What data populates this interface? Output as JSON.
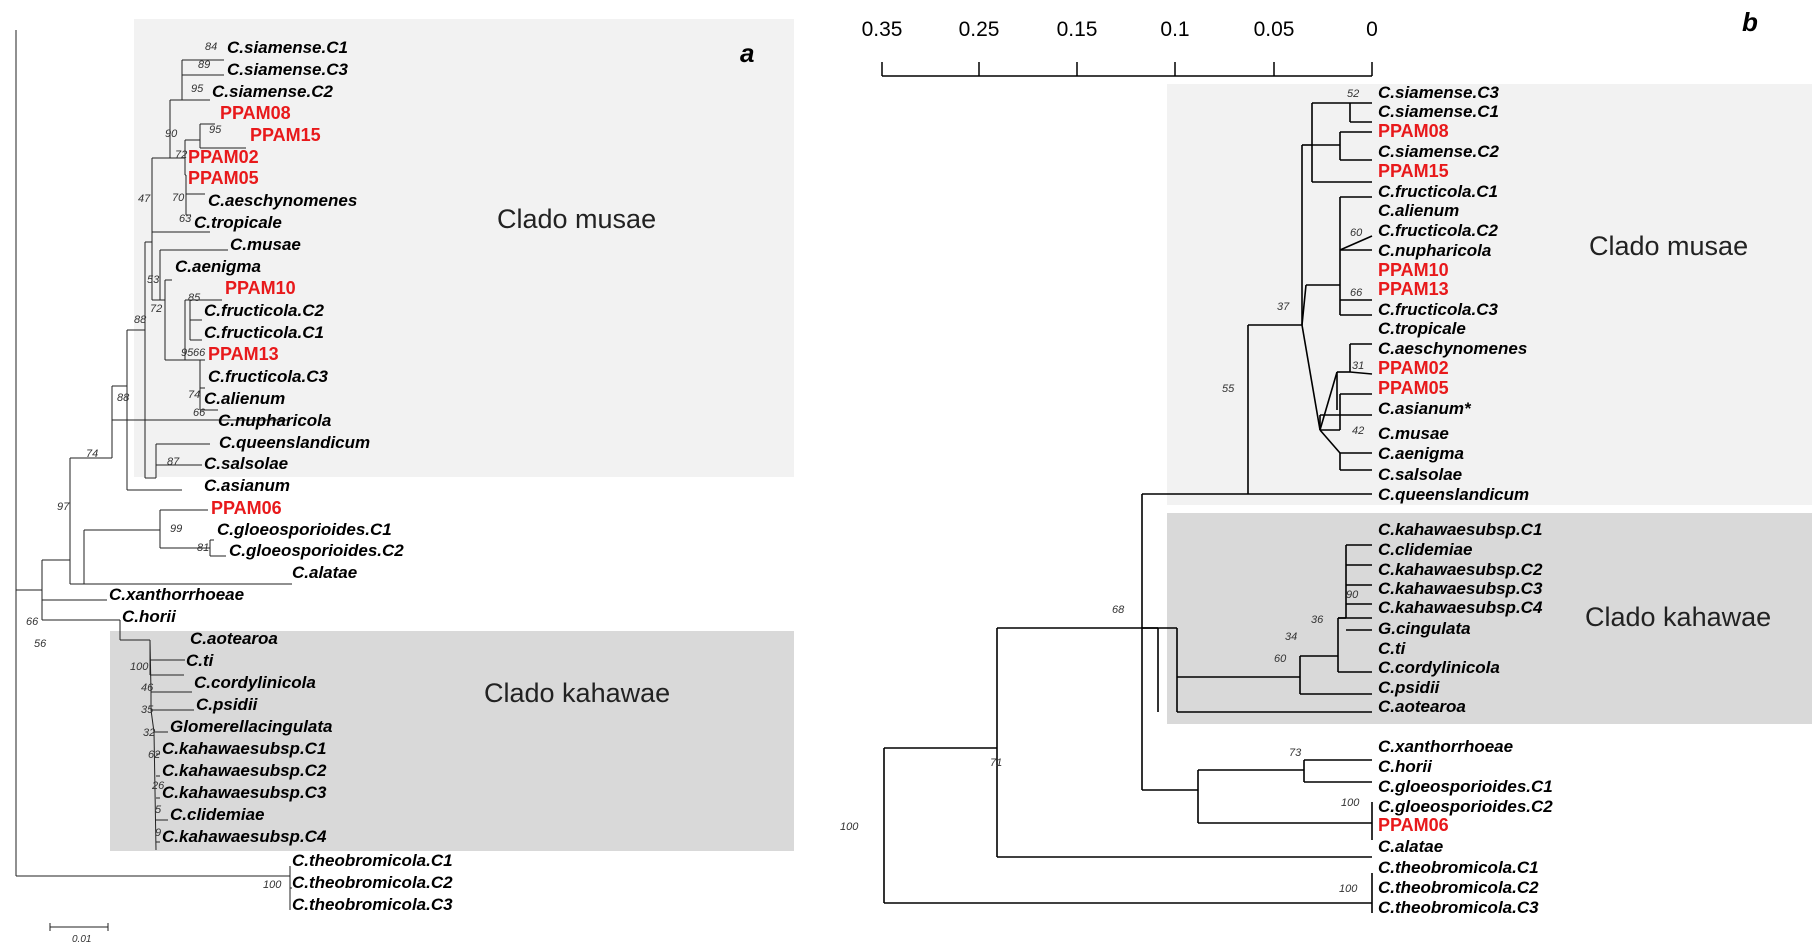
{
  "panel_a": {
    "label": "a",
    "clade_musae_label": "Clado musae",
    "clade_kahawae_label": "Clado kahawae",
    "scale_label": "0.01",
    "taxa": [
      {
        "name": "C.siamense.C1",
        "red": false
      },
      {
        "name": "C.siamense.C3",
        "red": false
      },
      {
        "name": "C.siamense.C2",
        "red": false
      },
      {
        "name": "PPAM08",
        "red": true
      },
      {
        "name": "PPAM15",
        "red": true
      },
      {
        "name": "PPAM02",
        "red": true
      },
      {
        "name": "PPAM05",
        "red": true
      },
      {
        "name": "C.aeschynomenes",
        "red": false
      },
      {
        "name": "C.tropicale",
        "red": false
      },
      {
        "name": "C.musae",
        "red": false
      },
      {
        "name": "C.aenigma",
        "red": false
      },
      {
        "name": "PPAM10",
        "red": true
      },
      {
        "name": "C.fructicola.C2",
        "red": false
      },
      {
        "name": "C.fructicola.C1",
        "red": false
      },
      {
        "name": "PPAM13",
        "red": true
      },
      {
        "name": "C.fructicola.C3",
        "red": false
      },
      {
        "name": "C.alienum",
        "red": false
      },
      {
        "name": "C.nupharicola",
        "red": false
      },
      {
        "name": "C.queenslandicum",
        "red": false
      },
      {
        "name": "C.salsolae",
        "red": false
      },
      {
        "name": "C.asianum",
        "red": false
      },
      {
        "name": "PPAM06",
        "red": true
      },
      {
        "name": "C.gloeosporioides.C1",
        "red": false
      },
      {
        "name": "C.gloeosporioides.C2",
        "red": false
      },
      {
        "name": "C.alatae",
        "red": false
      },
      {
        "name": "C.xanthorrhoeae",
        "red": false
      },
      {
        "name": "C.horii",
        "red": false
      },
      {
        "name": "C.aotearoa",
        "red": false
      },
      {
        "name": "C.ti",
        "red": false
      },
      {
        "name": "C.cordylinicola",
        "red": false
      },
      {
        "name": "C.psidii",
        "red": false
      },
      {
        "name": "Glomerellacingulata",
        "red": false
      },
      {
        "name": "C.kahawaesubsp.C1",
        "red": false
      },
      {
        "name": "C.kahawaesubsp.C2",
        "red": false
      },
      {
        "name": "C.kahawaesubsp.C3",
        "red": false
      },
      {
        "name": "C.clidemiae",
        "red": false
      },
      {
        "name": "C.kahawaesubsp.C4",
        "red": false
      },
      {
        "name": "C.theobromicola.C1",
        "red": false
      },
      {
        "name": "C.theobromicola.C2",
        "red": false
      },
      {
        "name": "C.theobromicola.C3",
        "red": false
      }
    ],
    "bootstrap": [
      "84",
      "89",
      "95",
      "95",
      "90",
      "72",
      "70",
      "63",
      "47",
      "53",
      "85",
      "72",
      "95",
      "66",
      "74",
      "66",
      "88",
      "87",
      "88",
      "74",
      "97",
      "99",
      "81",
      "66",
      "56",
      "100",
      "46",
      "35",
      "32",
      "62",
      "26",
      "5",
      "9",
      "100"
    ]
  },
  "panel_b": {
    "label": "b",
    "clade_musae_label": "Clado musae",
    "clade_kahawae_label": "Clado kahawae",
    "axis_ticks": [
      "0.35",
      "0.25",
      "0.15",
      "0.1",
      "0.05",
      "0"
    ],
    "taxa": [
      {
        "name": "C.siamense.C3",
        "red": false
      },
      {
        "name": "C.siamense.C1",
        "red": false
      },
      {
        "name": "PPAM08",
        "red": true
      },
      {
        "name": "C.siamense.C2",
        "red": false
      },
      {
        "name": "PPAM15",
        "red": true
      },
      {
        "name": "C.fructicola.C1",
        "red": false
      },
      {
        "name": "C.alienum",
        "red": false
      },
      {
        "name": "C.fructicola.C2",
        "red": false
      },
      {
        "name": "C.nupharicola",
        "red": false
      },
      {
        "name": "PPAM10",
        "red": true
      },
      {
        "name": "PPAM13",
        "red": true
      },
      {
        "name": "C.fructicola.C3",
        "red": false
      },
      {
        "name": "C.tropicale",
        "red": false
      },
      {
        "name": "C.aeschynomenes",
        "red": false
      },
      {
        "name": "PPAM02",
        "red": true
      },
      {
        "name": "PPAM05",
        "red": true
      },
      {
        "name": "C.asianum*",
        "red": false
      },
      {
        "name": "C.musae",
        "red": false
      },
      {
        "name": "C.aenigma",
        "red": false
      },
      {
        "name": "C.salsolae",
        "red": false
      },
      {
        "name": "C.queenslandicum",
        "red": false
      },
      {
        "name": "C.kahawaesubsp.C1",
        "red": false
      },
      {
        "name": "C.clidemiae",
        "red": false
      },
      {
        "name": "C.kahawaesubsp.C2",
        "red": false
      },
      {
        "name": "C.kahawaesubsp.C3",
        "red": false
      },
      {
        "name": "C.kahawaesubsp.C4",
        "red": false
      },
      {
        "name": "G.cingulata",
        "red": false
      },
      {
        "name": "C.ti",
        "red": false
      },
      {
        "name": "C.cordylinicola",
        "red": false
      },
      {
        "name": "C.psidii",
        "red": false
      },
      {
        "name": "C.aotearoa",
        "red": false
      },
      {
        "name": "C.xanthorrhoeae",
        "red": false
      },
      {
        "name": "C.horii",
        "red": false
      },
      {
        "name": "C.gloeosporioides.C1",
        "red": false
      },
      {
        "name": "C.gloeosporioides.C2",
        "red": false
      },
      {
        "name": "PPAM06",
        "red": true
      },
      {
        "name": "C.alatae",
        "red": false
      },
      {
        "name": "C.theobromicola.C1",
        "red": false
      },
      {
        "name": "C.theobromicola.C2",
        "red": false
      },
      {
        "name": "C.theobromicola.C3",
        "red": false
      }
    ],
    "bootstrap": [
      "52",
      "60",
      "66",
      "31",
      "42",
      "37",
      "55",
      "90",
      "36",
      "34",
      "60",
      "68",
      "73",
      "100",
      "71",
      "100",
      "100"
    ]
  }
}
